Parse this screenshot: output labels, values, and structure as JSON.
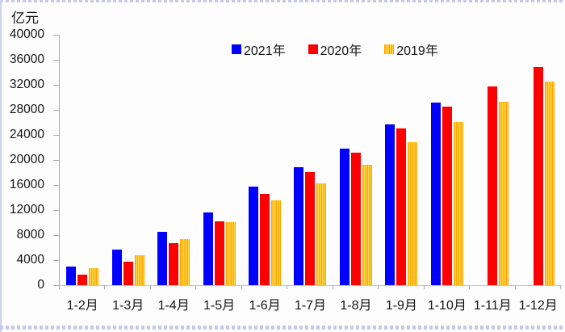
{
  "chart_data": {
    "type": "bar",
    "title": "",
    "ylabel": "亿元",
    "xlabel": "",
    "ylim": [
      0,
      40000
    ],
    "ytick_step": 4000,
    "yticks": [
      0,
      4000,
      8000,
      12000,
      16000,
      20000,
      24000,
      28000,
      32000,
      36000,
      40000
    ],
    "grid": "off",
    "legend_position": "top-center",
    "categories": [
      "1-2月",
      "1-3月",
      "1-4月",
      "1-5月",
      "1-6月",
      "1-7月",
      "1-8月",
      "1-9月",
      "1-10月",
      "1-11月",
      "1-12月"
    ],
    "series": [
      {
        "name": "2021年",
        "color": "#0000ff",
        "pattern": "solid",
        "values": [
          2950,
          5680,
          8530,
          11600,
          15730,
          18880,
          21770,
          25690,
          29150,
          null,
          null
        ]
      },
      {
        "name": "2020年",
        "color": "#ff0000",
        "pattern": "solid",
        "values": [
          1690,
          3690,
          6720,
          10220,
          14530,
          18030,
          21170,
          25010,
          28540,
          31730,
          34830
        ]
      },
      {
        "name": "2019年",
        "color": "#ffa500",
        "color2": "#ffd94a",
        "pattern": "vertical-stripes",
        "values": [
          2690,
          4810,
          7370,
          10050,
          13580,
          16290,
          19230,
          22890,
          26080,
          29310,
          32550
        ]
      }
    ]
  }
}
